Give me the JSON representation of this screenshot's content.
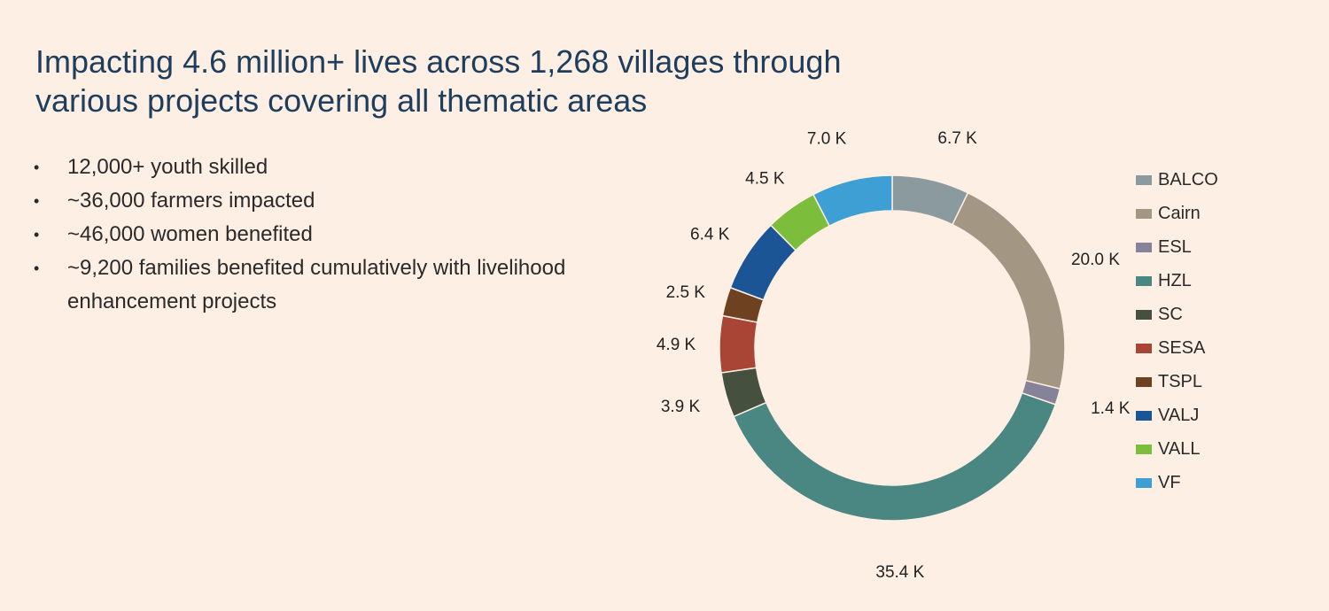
{
  "header": {
    "title_line1": "Impacting 4.6 million+ lives across 1,268 villages through",
    "title_line2": "various projects covering all thematic areas"
  },
  "bullets": [
    "12,000+ youth skilled",
    "~36,000 farmers impacted",
    "~46,000 women benefited",
    "~9,200 families benefited cumulatively with livelihood enhancement projects"
  ],
  "chart_data": {
    "type": "pie",
    "donut": true,
    "categories": [
      "BALCO",
      "Cairn",
      "ESL",
      "HZL",
      "SC",
      "SESA",
      "TSPL",
      "VALJ",
      "VALL",
      "VF"
    ],
    "values": [
      6.7,
      20.0,
      1.4,
      35.4,
      3.9,
      4.9,
      2.5,
      6.4,
      4.5,
      7.0
    ],
    "data_labels": [
      "6.7 K",
      "20.0 K",
      "1.4 K",
      "35.4 K",
      "3.9 K",
      "4.9 K",
      "2.5 K",
      "6.4 K",
      "4.5 K",
      "7.0 K"
    ],
    "colors": [
      "#8a9a9e",
      "#a39682",
      "#858299",
      "#4a8682",
      "#45503f",
      "#a84535",
      "#6e4220",
      "#1c5596",
      "#7cbd3c",
      "#3d9fd4"
    ],
    "legend_position": "right"
  }
}
